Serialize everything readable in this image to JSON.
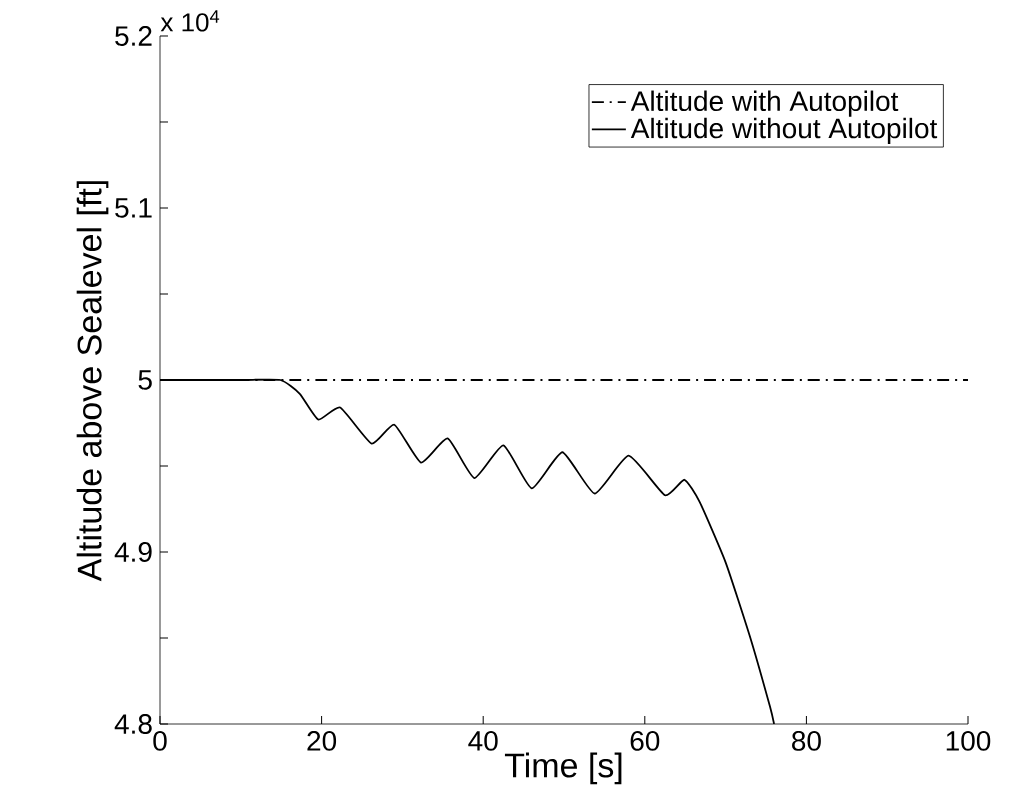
{
  "chart_data": {
    "type": "line",
    "xlabel": "Time [s]",
    "ylabel": "Altitude above Sealevel [ft]",
    "annotations": [
      "x 10$^{4}$"
    ],
    "xlim": [
      0,
      100
    ],
    "xticks": [
      0,
      20,
      40,
      60,
      80,
      100
    ],
    "ylim": [
      4.8,
      5.2
    ],
    "yticks": [
      4.8,
      {
        "value": 4.85,
        "label": null
      },
      4.9,
      {
        "value": 4.95,
        "label": null
      },
      5,
      {
        "value": 5.05,
        "label": null
      },
      5.1,
      {
        "value": 5.15,
        "label": null
      },
      5.2
    ],
    "legend": "top right",
    "grid": false,
    "series": [
      {
        "name": "Altitude with Autopilot",
        "color": "#000000",
        "line_style": "dashdot",
        "x": [
          0,
          100
        ],
        "values": [
          5,
          5
        ]
      },
      {
        "name": "Altitude without Autopilot",
        "color": "#000000",
        "line_style": "solid",
        "x": [
          0,
          10,
          14.9,
          17.3,
          19.6,
          22.3,
          26.2,
          29.0,
          32.3,
          35.6,
          38.9,
          42.5,
          46.0,
          49.8,
          53.8,
          58.0,
          62.5,
          64.9,
          66.8,
          70,
          73,
          75.5,
          76
        ],
        "values": [
          5,
          5,
          5,
          4.992,
          4.977,
          4.984,
          4.963,
          4.974,
          4.952,
          4.966,
          4.943,
          4.962,
          4.937,
          4.958,
          4.934,
          4.956,
          4.933,
          4.942,
          4.929,
          4.894,
          4.851,
          4.81,
          4.8
        ]
      }
    ]
  }
}
